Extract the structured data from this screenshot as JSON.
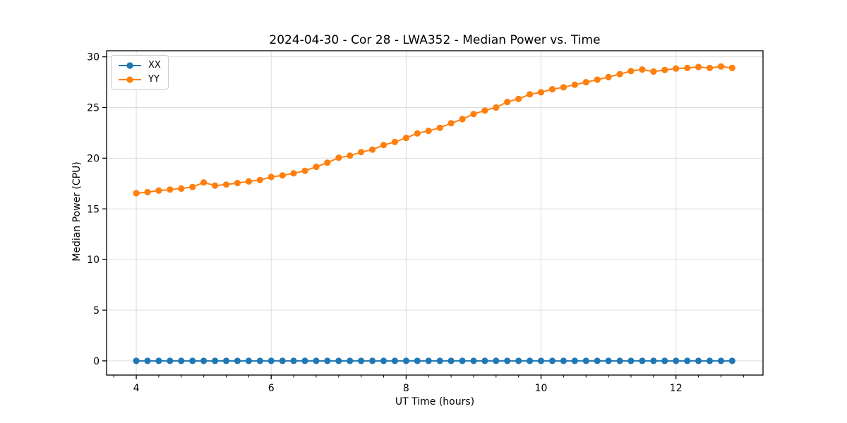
{
  "figure": {
    "background": "#ffffff"
  },
  "chart_data": {
    "type": "line",
    "title": "2024-04-30 - Cor 28 - LWA352 - Median Power vs. Time",
    "xlabel": "UT Time (hours)",
    "ylabel": "Median Power (CPU)",
    "xlim": [
      3.56,
      13.29
    ],
    "ylim": [
      -1.4,
      30.6
    ],
    "xticks": [
      4,
      6,
      8,
      10,
      12
    ],
    "yticks": [
      0,
      5,
      10,
      15,
      20,
      25,
      30
    ],
    "x_minor_tick_step_hours": 0.3333,
    "grid": true,
    "grid_color": "#dcdcdc",
    "legend_position": "upper-left",
    "x": [
      4.0,
      4.167,
      4.333,
      4.5,
      4.667,
      4.833,
      5.0,
      5.167,
      5.333,
      5.5,
      5.667,
      5.833,
      6.0,
      6.167,
      6.333,
      6.5,
      6.667,
      6.833,
      7.0,
      7.167,
      7.333,
      7.5,
      7.667,
      7.833,
      8.0,
      8.167,
      8.333,
      8.5,
      8.667,
      8.833,
      9.0,
      9.167,
      9.333,
      9.5,
      9.667,
      9.833,
      10.0,
      10.167,
      10.333,
      10.5,
      10.667,
      10.833,
      11.0,
      11.167,
      11.333,
      11.5,
      11.667,
      11.833,
      12.0,
      12.167,
      12.333,
      12.5,
      12.667,
      12.833
    ],
    "series": [
      {
        "name": "XX",
        "color": "#1f77b4",
        "values": [
          0,
          0,
          0,
          0,
          0,
          0,
          0,
          0,
          0,
          0,
          0,
          0,
          0,
          0,
          0,
          0,
          0,
          0,
          0,
          0,
          0,
          0,
          0,
          0,
          0,
          0,
          0,
          0,
          0,
          0,
          0,
          0,
          0,
          0,
          0,
          0,
          0,
          0,
          0,
          0,
          0,
          0,
          0,
          0,
          0,
          0,
          0,
          0,
          0,
          0,
          0,
          0,
          0,
          0
        ]
      },
      {
        "name": "YY",
        "color": "#ff7f0e",
        "values": [
          16.55,
          16.65,
          16.8,
          16.9,
          17.0,
          17.15,
          17.6,
          17.3,
          17.4,
          17.55,
          17.7,
          17.85,
          18.15,
          18.3,
          18.5,
          18.75,
          19.15,
          19.55,
          20.05,
          20.25,
          20.6,
          20.85,
          21.3,
          21.6,
          22.0,
          22.45,
          22.7,
          23.0,
          23.45,
          23.85,
          24.35,
          24.7,
          25.0,
          25.55,
          25.85,
          26.3,
          26.5,
          26.8,
          27.0,
          27.25,
          27.5,
          27.75,
          28.0,
          28.3,
          28.6,
          28.75,
          28.55,
          28.7,
          28.85,
          28.9,
          29.0,
          28.9,
          29.05,
          28.9
        ]
      }
    ]
  }
}
